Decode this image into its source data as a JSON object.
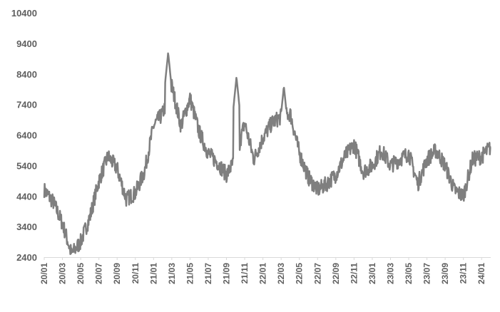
{
  "chart_data": {
    "type": "line",
    "title": "",
    "xlabel": "",
    "ylabel": "",
    "ylim": [
      2400,
      10400
    ],
    "yticks": [
      2400,
      3400,
      4400,
      5400,
      6400,
      7400,
      8400,
      9400,
      10400
    ],
    "xticks": [
      "20/01",
      "20/03",
      "20/05",
      "20/07",
      "20/09",
      "20/11",
      "21/01",
      "21/03",
      "21/05",
      "21/07",
      "21/09",
      "21/11",
      "22/01",
      "22/03",
      "22/05",
      "22/07",
      "22/09",
      "22/11",
      "23/01",
      "23/03",
      "23/05",
      "23/07",
      "23/09",
      "23/11",
      "24/01"
    ],
    "grid": false,
    "legend": "none",
    "line_color": "#7f7f7f",
    "series": [
      {
        "x": [
          "20/01",
          "20/02",
          "20/03",
          "20/04",
          "20/05",
          "20/06",
          "20/07",
          "20/08",
          "20/09",
          "20/10",
          "20/11",
          "20/12",
          "21/01",
          "21/02",
          "21/03",
          "21/04",
          "21/05",
          "21/06",
          "21/07",
          "21/08",
          "21/09",
          "21/10",
          "21/11",
          "21/12",
          "22/01",
          "22/02",
          "22/03",
          "22/04",
          "22/05",
          "22/06",
          "22/07",
          "22/08",
          "22/09",
          "22/10",
          "22/11",
          "22/12",
          "23/01",
          "23/02",
          "23/03",
          "23/04",
          "23/05",
          "23/06",
          "23/07",
          "23/08",
          "23/09",
          "23/10",
          "23/11",
          "23/12",
          "24/01",
          "24/02"
        ],
        "values": [
          4600,
          4200,
          3500,
          2500,
          2900,
          3700,
          4900,
          5700,
          5300,
          4300,
          4500,
          5200,
          6700,
          7100,
          8000,
          6700,
          7600,
          6500,
          5800,
          5500,
          5100,
          5600,
          6800,
          5600,
          6300,
          6800,
          7000,
          7100,
          5800,
          5000,
          4600,
          4800,
          5100,
          5700,
          6100,
          5200,
          5400,
          5900,
          5400,
          5600,
          5800,
          4800,
          5600,
          5900,
          5400,
          4600,
          4400,
          5600,
          5700,
          6000
        ]
      }
    ]
  }
}
